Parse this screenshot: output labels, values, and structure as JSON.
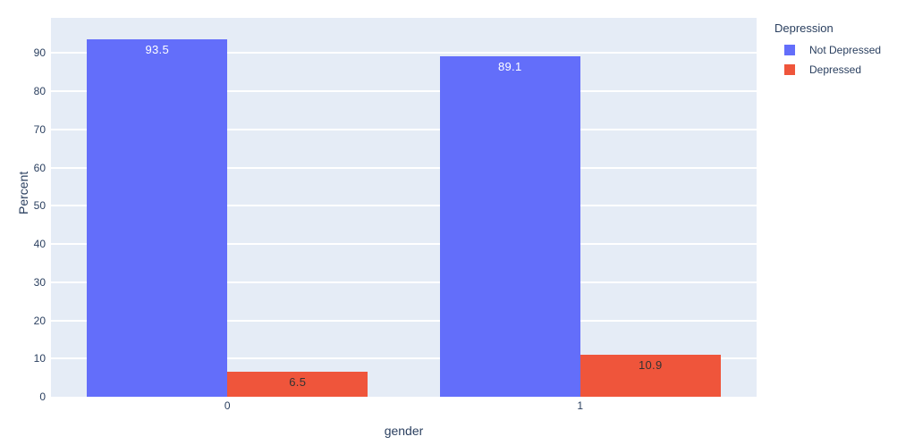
{
  "chart_data": {
    "type": "bar",
    "title": "",
    "xlabel": "gender",
    "ylabel": "Percent",
    "categories": [
      "0",
      "1"
    ],
    "series": [
      {
        "name": "Not Depressed",
        "values": [
          93.5,
          89.1
        ],
        "color": "#636EFA",
        "label_color": "#ffffff"
      },
      {
        "name": "Depressed",
        "values": [
          6.5,
          10.9
        ],
        "color": "#EF553B",
        "label_color": "#333333"
      }
    ],
    "value_labels": [
      [
        "93.5",
        "89.1"
      ],
      [
        "6.5",
        "10.9"
      ]
    ],
    "ylim": [
      0,
      99.2
    ],
    "yticks": [
      0,
      10,
      20,
      30,
      40,
      50,
      60,
      70,
      80,
      90
    ],
    "grid": true,
    "legend_title": "Depression",
    "legend_position": "top-right",
    "plot_bgcolor": "#E5ECF6",
    "paper_bgcolor": "#ffffff",
    "gridline_color": "#ffffff",
    "text_color": "#2a3f5f",
    "barmode": "group"
  }
}
